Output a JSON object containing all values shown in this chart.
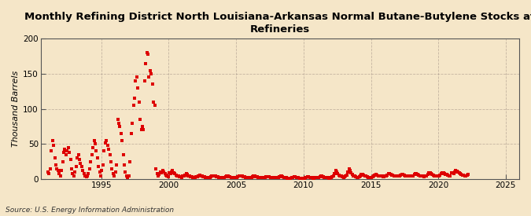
{
  "title": "Monthly Refining District North Louisiana-Arkansas Normal Butane-Butylene Stocks at\nRefineries",
  "ylabel": "Thousand Barrels",
  "source": "Source: U.S. Energy Information Administration",
  "background_color": "#f5e6c8",
  "plot_bg_color": "#f5e6c8",
  "marker_color": "#dd0000",
  "xlim": [
    1990.5,
    2026
  ],
  "ylim": [
    0,
    200
  ],
  "yticks": [
    0,
    50,
    100,
    150,
    200
  ],
  "xticks": [
    1995,
    2000,
    2005,
    2010,
    2015,
    2020,
    2025
  ],
  "data": {
    "dates": [
      1991.04,
      1991.13,
      1991.21,
      1991.29,
      1991.38,
      1991.46,
      1991.54,
      1991.63,
      1991.71,
      1991.79,
      1991.88,
      1991.96,
      1992.04,
      1992.13,
      1992.21,
      1992.29,
      1992.38,
      1992.46,
      1992.54,
      1992.63,
      1992.71,
      1992.79,
      1992.88,
      1992.96,
      1993.04,
      1993.13,
      1993.21,
      1993.29,
      1993.38,
      1993.46,
      1993.54,
      1993.63,
      1993.71,
      1993.79,
      1993.88,
      1993.96,
      1994.04,
      1994.13,
      1994.21,
      1994.29,
      1994.38,
      1994.46,
      1994.54,
      1994.63,
      1994.71,
      1994.79,
      1994.88,
      1994.96,
      1995.04,
      1995.13,
      1995.21,
      1995.29,
      1995.38,
      1995.46,
      1995.54,
      1995.63,
      1995.71,
      1995.79,
      1995.88,
      1995.96,
      1996.04,
      1996.13,
      1996.21,
      1996.29,
      1996.38,
      1996.46,
      1996.54,
      1996.63,
      1996.71,
      1996.79,
      1996.88,
      1996.96,
      1997.04,
      1997.13,
      1997.21,
      1997.29,
      1997.38,
      1997.46,
      1997.54,
      1997.63,
      1997.71,
      1997.79,
      1997.88,
      1997.96,
      1998.04,
      1998.13,
      1998.21,
      1998.29,
      1998.38,
      1998.46,
      1998.54,
      1998.63,
      1998.71,
      1998.79,
      1998.88,
      1998.96,
      1999.04,
      1999.13,
      1999.21,
      1999.29,
      1999.38,
      1999.46,
      1999.54,
      1999.63,
      1999.71,
      1999.79,
      1999.88,
      1999.96,
      2000.04,
      2000.13,
      2000.21,
      2000.29,
      2000.38,
      2000.46,
      2000.54,
      2000.63,
      2000.71,
      2000.79,
      2000.88,
      2000.96,
      2001.04,
      2001.13,
      2001.21,
      2001.29,
      2001.38,
      2001.46,
      2001.54,
      2001.63,
      2001.71,
      2001.79,
      2001.88,
      2001.96,
      2002.04,
      2002.13,
      2002.21,
      2002.29,
      2002.38,
      2002.46,
      2002.54,
      2002.63,
      2002.71,
      2002.79,
      2002.88,
      2002.96,
      2003.04,
      2003.13,
      2003.21,
      2003.29,
      2003.38,
      2003.46,
      2003.54,
      2003.63,
      2003.71,
      2003.79,
      2003.88,
      2003.96,
      2004.04,
      2004.13,
      2004.21,
      2004.29,
      2004.38,
      2004.46,
      2004.54,
      2004.63,
      2004.71,
      2004.79,
      2004.88,
      2004.96,
      2005.04,
      2005.13,
      2005.21,
      2005.29,
      2005.38,
      2005.46,
      2005.54,
      2005.63,
      2005.71,
      2005.79,
      2005.88,
      2005.96,
      2006.04,
      2006.13,
      2006.21,
      2006.29,
      2006.38,
      2006.46,
      2006.54,
      2006.63,
      2006.71,
      2006.79,
      2006.88,
      2006.96,
      2007.04,
      2007.13,
      2007.21,
      2007.29,
      2007.38,
      2007.46,
      2007.54,
      2007.63,
      2007.71,
      2007.79,
      2007.88,
      2007.96,
      2008.04,
      2008.13,
      2008.21,
      2008.29,
      2008.38,
      2008.46,
      2008.54,
      2008.63,
      2008.71,
      2008.79,
      2008.88,
      2008.96,
      2009.04,
      2009.13,
      2009.21,
      2009.29,
      2009.38,
      2009.46,
      2009.54,
      2009.63,
      2009.71,
      2009.79,
      2009.88,
      2009.96,
      2010.04,
      2010.13,
      2010.21,
      2010.29,
      2010.38,
      2010.46,
      2010.54,
      2010.63,
      2010.71,
      2010.79,
      2010.88,
      2010.96,
      2011.04,
      2011.13,
      2011.21,
      2011.29,
      2011.38,
      2011.46,
      2011.54,
      2011.63,
      2011.71,
      2011.79,
      2011.88,
      2011.96,
      2012.04,
      2012.13,
      2012.21,
      2012.29,
      2012.38,
      2012.46,
      2012.54,
      2012.63,
      2012.71,
      2012.79,
      2012.88,
      2012.96,
      2013.04,
      2013.13,
      2013.21,
      2013.29,
      2013.38,
      2013.46,
      2013.54,
      2013.63,
      2013.71,
      2013.79,
      2013.88,
      2013.96,
      2014.04,
      2014.13,
      2014.21,
      2014.29,
      2014.38,
      2014.46,
      2014.54,
      2014.63,
      2014.71,
      2014.79,
      2014.88,
      2014.96,
      2015.04,
      2015.13,
      2015.21,
      2015.29,
      2015.38,
      2015.46,
      2015.54,
      2015.63,
      2015.71,
      2015.79,
      2015.88,
      2015.96,
      2016.04,
      2016.13,
      2016.21,
      2016.29,
      2016.38,
      2016.46,
      2016.54,
      2016.63,
      2016.71,
      2016.79,
      2016.88,
      2016.96,
      2017.04,
      2017.13,
      2017.21,
      2017.29,
      2017.38,
      2017.46,
      2017.54,
      2017.63,
      2017.71,
      2017.79,
      2017.88,
      2017.96,
      2018.04,
      2018.13,
      2018.21,
      2018.29,
      2018.38,
      2018.46,
      2018.54,
      2018.63,
      2018.71,
      2018.79,
      2018.88,
      2018.96,
      2019.04,
      2019.13,
      2019.21,
      2019.29,
      2019.38,
      2019.46,
      2019.54,
      2019.63,
      2019.71,
      2019.79,
      2019.88,
      2019.96,
      2020.04,
      2020.13,
      2020.21,
      2020.29,
      2020.38,
      2020.46,
      2020.54,
      2020.63,
      2020.71,
      2020.79,
      2020.88,
      2020.96,
      2021.04,
      2021.13,
      2021.21,
      2021.29,
      2021.38,
      2021.46,
      2021.54,
      2021.63,
      2021.71,
      2021.79,
      2021.88,
      2021.96,
      2022.04,
      2022.13,
      2022.21
    ],
    "values": [
      10,
      8,
      15,
      40,
      55,
      48,
      30,
      20,
      15,
      12,
      8,
      5,
      12,
      25,
      38,
      42,
      35,
      40,
      45,
      38,
      28,
      15,
      8,
      5,
      10,
      18,
      30,
      35,
      28,
      22,
      18,
      12,
      8,
      5,
      3,
      5,
      8,
      15,
      25,
      35,
      45,
      55,
      50,
      40,
      30,
      18,
      10,
      5,
      12,
      20,
      40,
      52,
      55,
      48,
      42,
      35,
      25,
      15,
      8,
      4,
      10,
      20,
      85,
      80,
      75,
      65,
      55,
      35,
      20,
      10,
      5,
      2,
      5,
      25,
      65,
      80,
      105,
      115,
      140,
      145,
      130,
      110,
      85,
      70,
      75,
      70,
      140,
      165,
      180,
      178,
      145,
      155,
      150,
      135,
      110,
      105,
      15,
      8,
      5,
      7,
      10,
      9,
      12,
      10,
      8,
      6,
      4,
      3,
      9,
      8,
      10,
      12,
      9,
      8,
      6,
      5,
      4,
      3,
      3,
      2,
      5,
      4,
      6,
      8,
      7,
      5,
      4,
      3,
      3,
      2,
      2,
      2,
      3,
      3,
      5,
      6,
      5,
      4,
      3,
      3,
      2,
      2,
      2,
      2,
      2,
      3,
      4,
      5,
      5,
      4,
      3,
      3,
      2,
      2,
      2,
      2,
      2,
      2,
      3,
      4,
      4,
      3,
      3,
      2,
      2,
      2,
      2,
      2,
      2,
      3,
      4,
      5,
      5,
      4,
      3,
      3,
      2,
      2,
      2,
      2,
      2,
      2,
      3,
      4,
      4,
      3,
      3,
      2,
      2,
      2,
      2,
      2,
      2,
      2,
      3,
      3,
      3,
      3,
      2,
      2,
      2,
      2,
      2,
      2,
      2,
      2,
      3,
      4,
      4,
      3,
      2,
      2,
      2,
      1,
      1,
      1,
      1,
      2,
      2,
      3,
      3,
      2,
      2,
      2,
      1,
      1,
      1,
      1,
      1,
      2,
      2,
      3,
      3,
      2,
      2,
      2,
      1,
      1,
      2,
      2,
      2,
      2,
      3,
      4,
      4,
      3,
      2,
      2,
      2,
      2,
      1,
      1,
      2,
      3,
      5,
      8,
      12,
      10,
      8,
      6,
      5,
      4,
      3,
      2,
      3,
      4,
      6,
      10,
      15,
      12,
      9,
      7,
      5,
      4,
      3,
      2,
      2,
      3,
      5,
      7,
      7,
      6,
      5,
      4,
      3,
      2,
      2,
      2,
      2,
      3,
      4,
      6,
      7,
      6,
      5,
      5,
      4,
      4,
      3,
      3,
      4,
      5,
      6,
      8,
      8,
      7,
      6,
      6,
      5,
      5,
      4,
      4,
      4,
      5,
      6,
      7,
      7,
      6,
      5,
      5,
      4,
      4,
      4,
      4,
      4,
      5,
      7,
      8,
      8,
      7,
      6,
      5,
      5,
      4,
      4,
      3,
      4,
      5,
      7,
      9,
      9,
      8,
      7,
      6,
      5,
      5,
      4,
      4,
      5,
      6,
      8,
      9,
      9,
      8,
      7,
      7,
      6,
      5,
      5,
      9,
      9,
      8,
      10,
      12,
      11,
      10,
      9,
      8,
      7,
      6,
      6,
      5,
      5,
      6,
      7
    ]
  }
}
